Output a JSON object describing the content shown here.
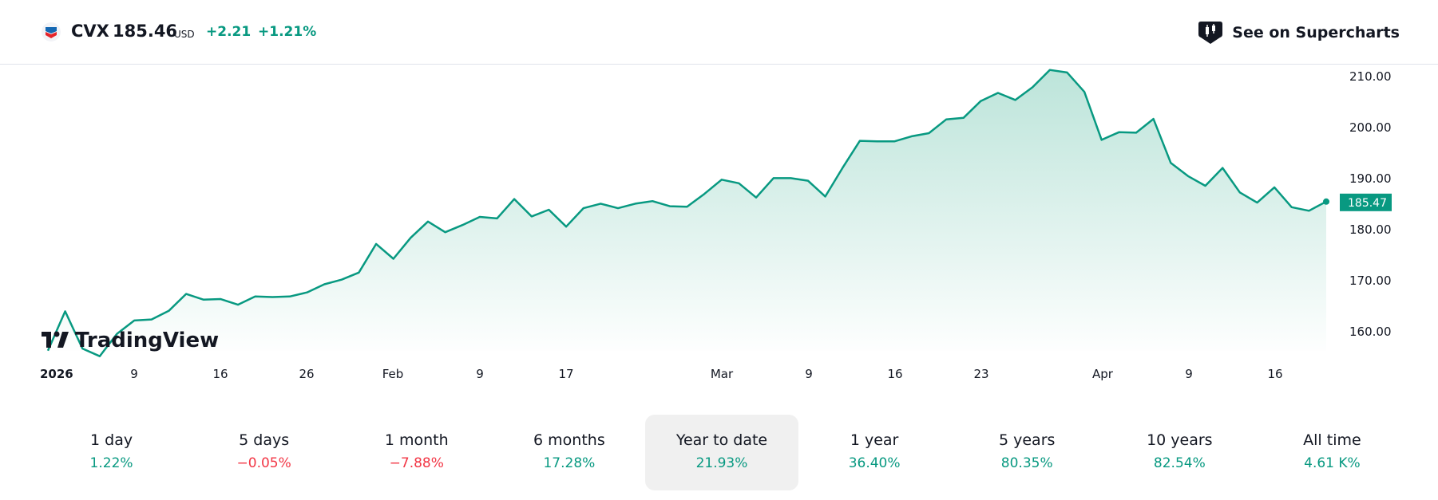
{
  "header": {
    "symbol": "CVX",
    "price": "185.46",
    "currency": "USD",
    "change": "+2.21",
    "change_percent": "+1.21%",
    "supercharts_label": "See on Supercharts"
  },
  "colors": {
    "line": "#089981",
    "positive": "#089981",
    "negative": "#f23645",
    "area_top": "#b9e3d8",
    "logo": "#131722"
  },
  "watermark": "TradingView",
  "chart_data": {
    "type": "area",
    "x_ticks": [
      "2026",
      "9",
      "16",
      "26",
      "Feb",
      "9",
      "17",
      "Mar",
      "9",
      "16",
      "23",
      "Apr",
      "9",
      "16"
    ],
    "y_ticks": [
      "210.00",
      "200.00",
      "190.00",
      "180.00",
      "170.00",
      "160.00"
    ],
    "ylim": [
      157,
      212.5
    ],
    "last_value_label": "185.47",
    "values": [
      156.3,
      164.0,
      156.7,
      155.2,
      159.6,
      162.2,
      162.4,
      164.1,
      167.4,
      166.3,
      166.4,
      165.3,
      166.9,
      166.8,
      166.9,
      167.7,
      169.3,
      170.2,
      171.6,
      177.2,
      174.3,
      178.4,
      181.6,
      179.5,
      180.9,
      182.5,
      182.2,
      186.0,
      182.6,
      183.9,
      180.6,
      184.2,
      185.1,
      184.2,
      185.1,
      185.6,
      184.6,
      184.5,
      187.0,
      189.8,
      189.1,
      186.3,
      190.1,
      190.1,
      189.6,
      186.5,
      192.1,
      197.4,
      197.3,
      197.3,
      198.3,
      198.9,
      201.6,
      201.9,
      205.2,
      206.8,
      205.4,
      207.9,
      211.3,
      210.8,
      207.0,
      197.6,
      199.1,
      199.0,
      201.7,
      193.1,
      190.5,
      188.6,
      192.1,
      187.3,
      185.3,
      188.3,
      184.4,
      183.7,
      185.5
    ]
  },
  "periods": [
    {
      "label": "1 day",
      "value": "1.22%",
      "trend": "pos"
    },
    {
      "label": "5 days",
      "value": "−0.05%",
      "trend": "neg"
    },
    {
      "label": "1 month",
      "value": "−7.88%",
      "trend": "neg"
    },
    {
      "label": "6 months",
      "value": "17.28%",
      "trend": "pos"
    },
    {
      "label": "Year to date",
      "value": "21.93%",
      "trend": "pos",
      "active": true
    },
    {
      "label": "1 year",
      "value": "36.40%",
      "trend": "pos"
    },
    {
      "label": "5 years",
      "value": "80.35%",
      "trend": "pos"
    },
    {
      "label": "10 years",
      "value": "82.54%",
      "trend": "pos"
    },
    {
      "label": "All time",
      "value": "4.61 K%",
      "trend": "pos"
    }
  ]
}
